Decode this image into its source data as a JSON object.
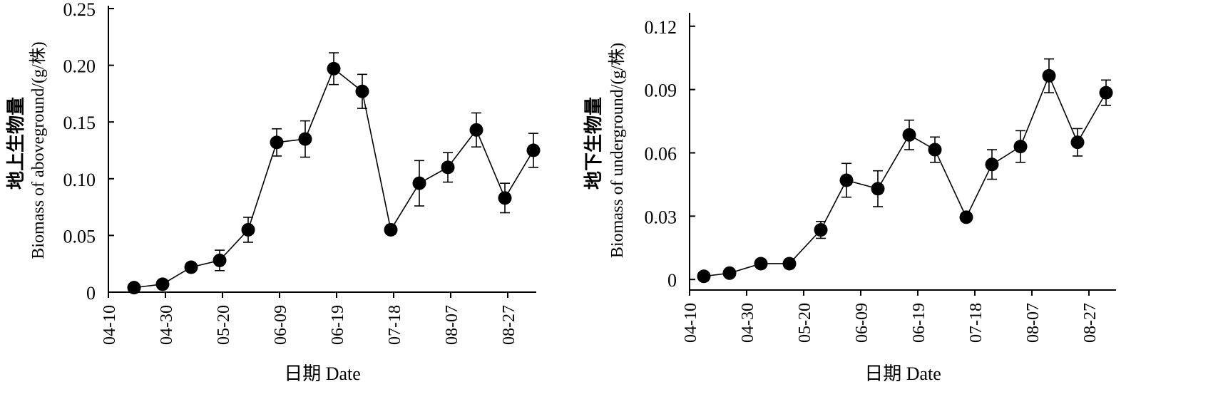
{
  "chart_data": [
    {
      "type": "line",
      "xlabel": "日期  Date",
      "ylabel_cn": "地上生物量",
      "ylabel_en": "Biomass of aboveground/(g/株)",
      "x_ticks": [
        "04-10",
        "04-30",
        "05-20",
        "06-09",
        "06-19",
        "07-18",
        "08-07",
        "08-27"
      ],
      "y_ticks": [
        "0",
        "0.05",
        "0.10",
        "0.15",
        "0.20",
        "0.25"
      ],
      "ylim": [
        0,
        0.25
      ],
      "grid": false,
      "points": [
        {
          "x": 0.45,
          "y": 0.004,
          "err": 0.0
        },
        {
          "x": 0.95,
          "y": 0.007,
          "err": 0.0
        },
        {
          "x": 1.45,
          "y": 0.022,
          "err": 0.0
        },
        {
          "x": 1.95,
          "y": 0.028,
          "err": 0.009
        },
        {
          "x": 2.45,
          "y": 0.055,
          "err": 0.011
        },
        {
          "x": 2.95,
          "y": 0.132,
          "err": 0.012
        },
        {
          "x": 3.45,
          "y": 0.135,
          "err": 0.016
        },
        {
          "x": 3.95,
          "y": 0.197,
          "err": 0.014
        },
        {
          "x": 4.45,
          "y": 0.177,
          "err": 0.015
        },
        {
          "x": 4.95,
          "y": 0.055,
          "err": 0.004
        },
        {
          "x": 5.45,
          "y": 0.096,
          "err": 0.02
        },
        {
          "x": 5.95,
          "y": 0.11,
          "err": 0.013
        },
        {
          "x": 6.45,
          "y": 0.143,
          "err": 0.015
        },
        {
          "x": 6.95,
          "y": 0.083,
          "err": 0.013
        },
        {
          "x": 7.45,
          "y": 0.125,
          "err": 0.015
        }
      ]
    },
    {
      "type": "line",
      "xlabel": "日期  Date",
      "ylabel_cn": "地下生物量",
      "ylabel_en": "Biomass of underground/(g/株)",
      "x_ticks": [
        "04-10",
        "04-30",
        "05-20",
        "06-09",
        "06-19",
        "07-18",
        "08-07",
        "08-27"
      ],
      "y_ticks": [
        "0",
        "0.03",
        "0.06",
        "0.09",
        "0.12"
      ],
      "ylim": [
        -0.005,
        0.125
      ],
      "grid": false,
      "points": [
        {
          "x": 0.25,
          "y": 0.0015,
          "err": 0.0
        },
        {
          "x": 0.7,
          "y": 0.003,
          "err": 0.0
        },
        {
          "x": 1.25,
          "y": 0.0075,
          "err": 0.0
        },
        {
          "x": 1.75,
          "y": 0.0075,
          "err": 0.0
        },
        {
          "x": 2.3,
          "y": 0.0235,
          "err": 0.004
        },
        {
          "x": 2.75,
          "y": 0.047,
          "err": 0.008
        },
        {
          "x": 3.3,
          "y": 0.043,
          "err": 0.0085
        },
        {
          "x": 3.85,
          "y": 0.0685,
          "err": 0.007
        },
        {
          "x": 4.3,
          "y": 0.0615,
          "err": 0.006
        },
        {
          "x": 4.85,
          "y": 0.0295,
          "err": 0.0
        },
        {
          "x": 5.3,
          "y": 0.0545,
          "err": 0.007
        },
        {
          "x": 5.8,
          "y": 0.063,
          "err": 0.0075
        },
        {
          "x": 6.3,
          "y": 0.0965,
          "err": 0.008
        },
        {
          "x": 6.8,
          "y": 0.065,
          "err": 0.0065
        },
        {
          "x": 7.3,
          "y": 0.0885,
          "err": 0.006
        }
      ]
    }
  ]
}
